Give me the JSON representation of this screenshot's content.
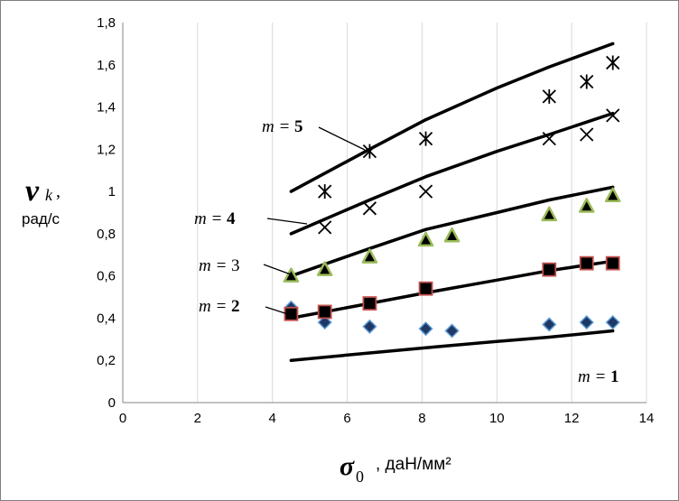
{
  "chart_data": {
    "type": "scatter",
    "xlabel_symbol": "σ",
    "xlabel_subscript": "0",
    "xlabel_unit": ", даН/мм²",
    "ylabel_symbol": "ν",
    "ylabel_subscript": "k",
    "ylabel_unit": "рад/с",
    "xlim": [
      0,
      14
    ],
    "ylim": [
      0,
      1.8
    ],
    "xticks": [
      "0",
      "2",
      "4",
      "6",
      "8",
      "10",
      "12",
      "14"
    ],
    "yticks": [
      "0",
      "0,2",
      "0,4",
      "0,6",
      "0,8",
      "1",
      "1,2",
      "1,4",
      "1,6",
      "1,8"
    ],
    "grid": "vertical",
    "series": [
      {
        "label_prefix": "m = ",
        "label_value": "1",
        "marker": "diamond",
        "marker_color": "#1f3864",
        "marker_stroke": "#5b9bd5",
        "points": [
          [
            4.5,
            0.45
          ],
          [
            5.4,
            0.38
          ],
          [
            6.6,
            0.36
          ],
          [
            8.1,
            0.35
          ],
          [
            8.8,
            0.34
          ],
          [
            11.4,
            0.37
          ],
          [
            12.4,
            0.38
          ],
          [
            13.1,
            0.38
          ]
        ],
        "curve": [
          [
            4.5,
            0.2
          ],
          [
            6.6,
            0.235
          ],
          [
            8.1,
            0.26
          ],
          [
            10,
            0.29
          ],
          [
            11.4,
            0.31
          ],
          [
            13.1,
            0.34
          ]
        ]
      },
      {
        "label_prefix": "m = ",
        "label_value": "2",
        "marker": "square",
        "marker_color": "#000000",
        "marker_stroke": "#c0504d",
        "points": [
          [
            4.5,
            0.42
          ],
          [
            5.4,
            0.43
          ],
          [
            6.6,
            0.47
          ],
          [
            8.1,
            0.54
          ],
          [
            11.4,
            0.63
          ],
          [
            12.4,
            0.66
          ],
          [
            13.1,
            0.66
          ]
        ],
        "curve": [
          [
            4.5,
            0.4
          ],
          [
            6.6,
            0.47
          ],
          [
            8.1,
            0.52
          ],
          [
            10,
            0.58
          ],
          [
            11.4,
            0.625
          ],
          [
            13.1,
            0.67
          ]
        ]
      },
      {
        "label_prefix": "m = ",
        "label_value": "3",
        "marker": "triangle",
        "marker_color": "#000000",
        "marker_stroke": "#9bbb59",
        "points": [
          [
            4.5,
            0.6
          ],
          [
            5.4,
            0.63
          ],
          [
            6.6,
            0.69
          ],
          [
            8.1,
            0.77
          ],
          [
            8.8,
            0.79
          ],
          [
            11.4,
            0.89
          ],
          [
            12.4,
            0.93
          ],
          [
            13.1,
            0.98
          ]
        ],
        "curve": [
          [
            4.5,
            0.6
          ],
          [
            6.6,
            0.73
          ],
          [
            8.1,
            0.82
          ],
          [
            10,
            0.9
          ],
          [
            11.4,
            0.96
          ],
          [
            13.1,
            1.02
          ]
        ]
      },
      {
        "label_prefix": "m = ",
        "label_value": "4",
        "marker": "x",
        "marker_color": "#000000",
        "points": [
          [
            5.4,
            0.83
          ],
          [
            6.6,
            0.92
          ],
          [
            8.1,
            1.0
          ],
          [
            11.4,
            1.25
          ],
          [
            12.4,
            1.27
          ],
          [
            13.1,
            1.36
          ]
        ],
        "curve": [
          [
            4.5,
            0.8
          ],
          [
            6.6,
            0.96
          ],
          [
            8.1,
            1.07
          ],
          [
            10,
            1.19
          ],
          [
            11.4,
            1.27
          ],
          [
            13.1,
            1.37
          ]
        ]
      },
      {
        "label_prefix": "m = ",
        "label_value": "5",
        "marker": "star",
        "marker_color": "#000000",
        "points": [
          [
            5.4,
            1.0
          ],
          [
            6.6,
            1.19
          ],
          [
            8.1,
            1.25
          ],
          [
            11.4,
            1.45
          ],
          [
            12.4,
            1.52
          ],
          [
            13.1,
            1.61
          ]
        ],
        "curve": [
          [
            4.5,
            1.0
          ],
          [
            6.6,
            1.2
          ],
          [
            8.1,
            1.34
          ],
          [
            10,
            1.49
          ],
          [
            11.4,
            1.59
          ],
          [
            13.1,
            1.7
          ]
        ]
      }
    ]
  }
}
